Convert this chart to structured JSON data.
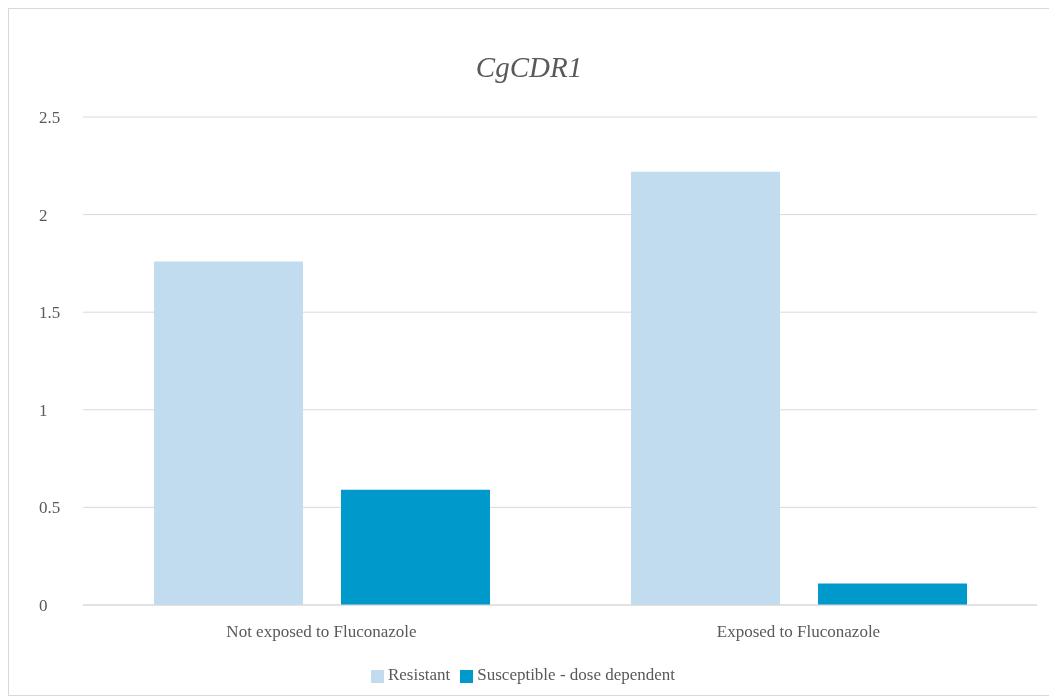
{
  "chart_data": {
    "type": "bar",
    "title": "CgCDR1",
    "categories": [
      "Not exposed to Fluconazole",
      "Exposed to Fluconazole"
    ],
    "series": [
      {
        "name": "Resistant",
        "color": "#c2dcef",
        "values": [
          1.76,
          2.22
        ]
      },
      {
        "name": "Susceptible - dose dependent",
        "color": "#0099cc",
        "values": [
          0.59,
          0.11
        ]
      }
    ],
    "ylim": [
      0,
      2.5
    ],
    "yticks": [
      0,
      0.5,
      1,
      1.5,
      2,
      2.5
    ],
    "grid": "y",
    "legend": "bottom"
  }
}
